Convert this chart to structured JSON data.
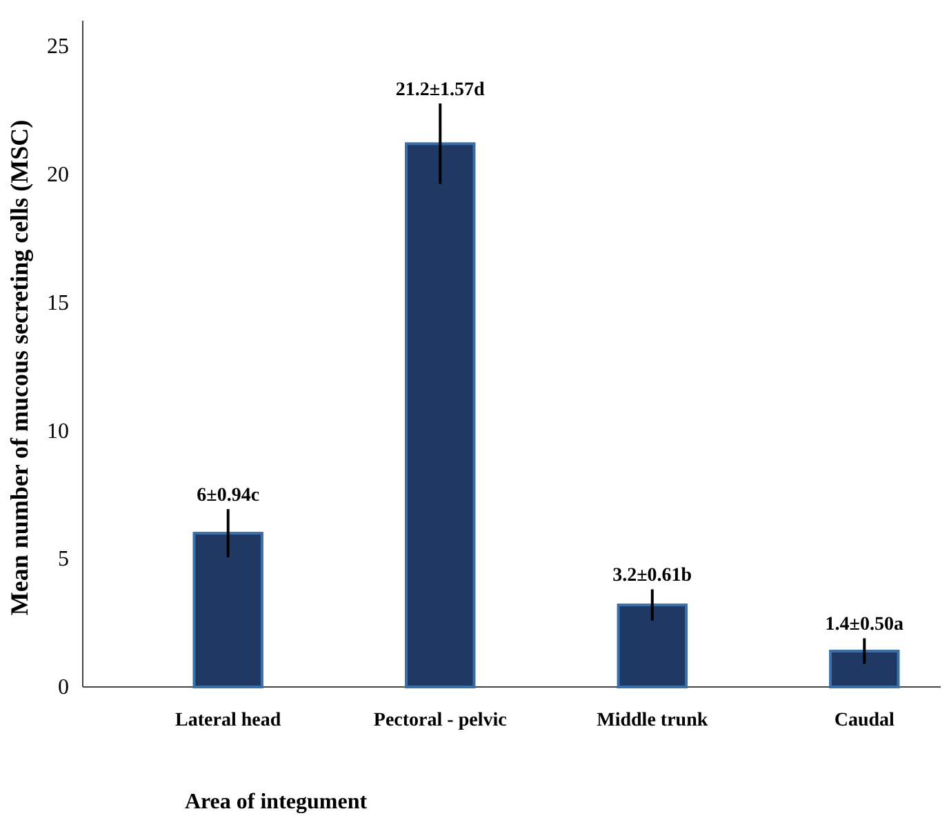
{
  "chart_data": {
    "type": "bar",
    "xlabel": "Area of integument",
    "ylabel": "Mean number of mucous secreting cells (MSC)",
    "categories": [
      "Lateral head",
      "Pectoral - pelvic",
      "Middle  trunk",
      "Caudal"
    ],
    "values": [
      6,
      21.2,
      3.2,
      1.4
    ],
    "errors": [
      0.94,
      1.57,
      0.61,
      0.5
    ],
    "value_labels": [
      "6±0.94c",
      "21.2±1.57d",
      "3.2±0.61b",
      "1.4±0.50a"
    ],
    "color": "#1f3864",
    "ylim": [
      0,
      26
    ],
    "yticks": [
      0,
      5,
      10,
      15,
      20,
      25
    ],
    "grid": false
  }
}
